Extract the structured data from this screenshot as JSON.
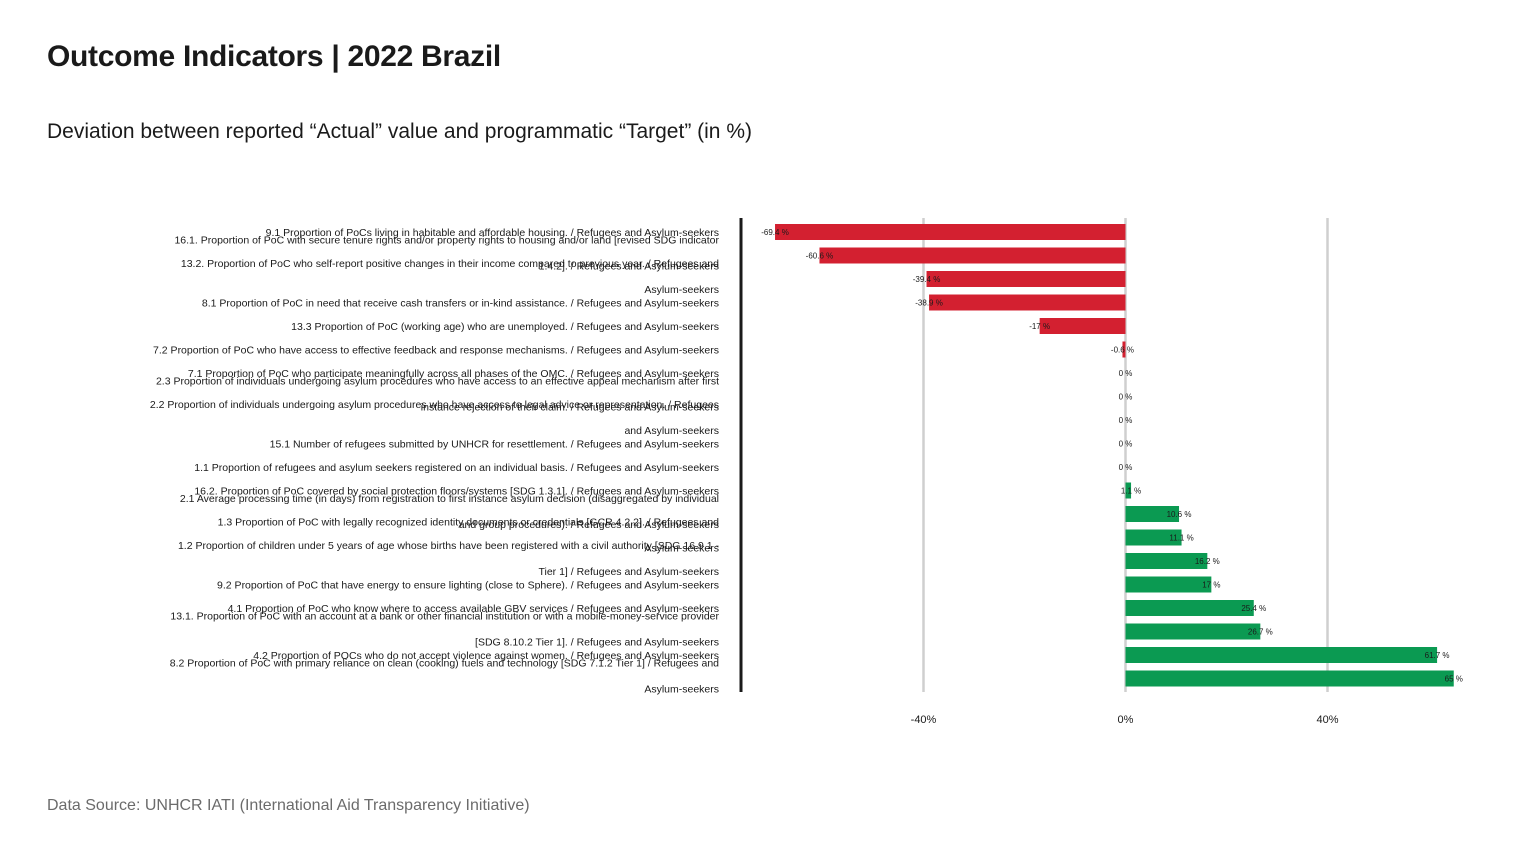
{
  "header": {
    "title": "Outcome Indicators | 2022 Brazil",
    "subtitle": "Deviation between reported “Actual” value and programmatic “Target” (in %)"
  },
  "footer": {
    "source": "Data Source: UNHCR IATI (International Aid Transparency Initiative)"
  },
  "colors": {
    "negative": "#d32030",
    "positive": "#0b9a52",
    "grid": "#cfcfcf",
    "axis": "#1a1a1a"
  },
  "chart_data": {
    "type": "bar",
    "orientation": "horizontal",
    "unit": "%",
    "xlim": [
      -76,
      70
    ],
    "xticks": [
      -40,
      0,
      40
    ],
    "xtick_labels": [
      "-40%",
      "0%",
      "40%"
    ],
    "grid": true,
    "categories": [
      [
        "9.1 Proportion of PoCs living in habitable and affordable housing. / Refugees and Asylum-seekers"
      ],
      [
        "16.1. Proportion of PoC with secure tenure rights and/or property rights to housing and/or land [revised SDG indicator",
        "1.4.2]. / Refugees and Asylum-seekers"
      ],
      [
        "13.2. Proportion of PoC who self-report positive changes in their income compared to previous year. / Refugees and",
        "Asylum-seekers"
      ],
      [
        "8.1 Proportion of PoC in need that receive cash transfers or in-kind assistance. / Refugees and Asylum-seekers"
      ],
      [
        "13.3 Proportion of PoC (working age) who are unemployed. / Refugees and Asylum-seekers"
      ],
      [
        "7.2 Proportion of PoC who have access to effective feedback and response mechanisms. / Refugees and Asylum-seekers"
      ],
      [
        "7.1 Proportion of PoC who participate meaningfully across all phases of the OMC. / Refugees and Asylum-seekers"
      ],
      [
        "2.3 Proportion of individuals undergoing asylum procedures who have access to an effective appeal mechanism after first",
        "instance rejection of their claim. / Refugees and Asylum-seekers"
      ],
      [
        "2.2 Proportion of individuals undergoing asylum procedures who have access to legal advice or representation. / Refugees",
        "and Asylum-seekers"
      ],
      [
        "15.1 Number of refugees submitted by UNHCR for resettlement. / Refugees and Asylum-seekers"
      ],
      [
        "1.1 Proportion of refugees and asylum seekers registered on an individual basis. / Refugees and Asylum-seekers"
      ],
      [
        "16.2. Proportion of PoC covered by social protection floors/systems [SDG 1.3.1]. / Refugees and Asylum-seekers"
      ],
      [
        "2.1 Average processing time (in days) from registration to first instance asylum decision (disaggregated by individual",
        "and group procedures). / Refugees and Asylum-seekers"
      ],
      [
        "1.3 Proportion of PoC with legally recognized identity documents or credentials [GCR 4.2.2]. / Refugees and",
        "Asylum-seekers"
      ],
      [
        "1.2 Proportion of children under 5 years of age whose births have been registered with a civil authority [SDG 16.9.1 -",
        "Tier 1] / Refugees and Asylum-seekers"
      ],
      [
        "9.2 Proportion of PoC that have energy to ensure lighting (close to Sphere). / Refugees and Asylum-seekers"
      ],
      [
        "4.1 Proportion of PoC who know where to access available GBV services / Refugees and Asylum-seekers"
      ],
      [
        "13.1. Proportion of PoC with an account at a bank or other financial institution or with a mobile-money-service provider",
        "[SDG 8.10.2 Tier 1]. / Refugees and Asylum-seekers"
      ],
      [
        "4.2 Proportion of POCs who do not accept violence against women. / Refugees and Asylum-seekers"
      ],
      [
        "8.2 Proportion of PoC with primary reliance on clean (cooking) fuels and technology [SDG 7.1.2 Tier 1] / Refugees and",
        "Asylum-seekers"
      ]
    ],
    "values": [
      -69.4,
      -60.6,
      -39.4,
      -38.9,
      -17,
      -0.6,
      0,
      0,
      0,
      0,
      0,
      1.1,
      10.6,
      11.1,
      16.2,
      17,
      25.4,
      26.7,
      61.7,
      65
    ],
    "value_labels": [
      "-69.4 %",
      "-60.6 %",
      "-39.4 %",
      "-38.9 %",
      "-17 %",
      "-0.6 %",
      "0 %",
      "0 %",
      "0 %",
      "0 %",
      "0 %",
      "1.1 %",
      "10.6 %",
      "11.1 %",
      "16.2 %",
      "17 %",
      "25.4 %",
      "26.7 %",
      "61.7 %",
      "65 %"
    ]
  }
}
